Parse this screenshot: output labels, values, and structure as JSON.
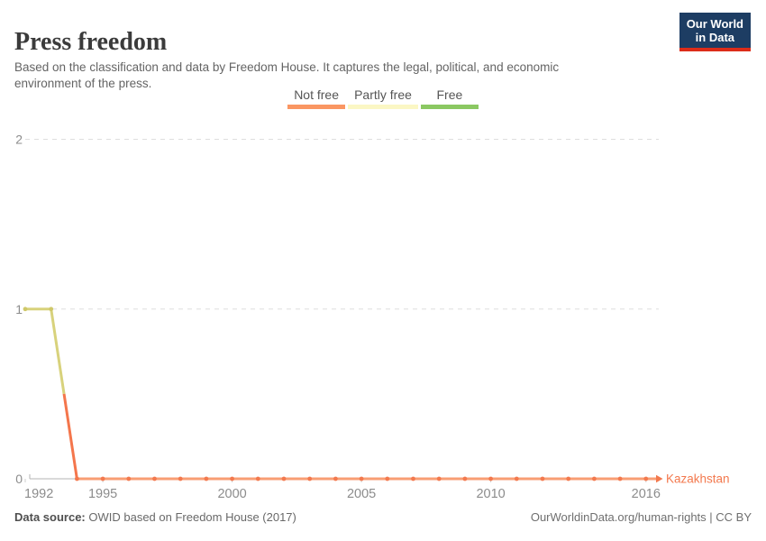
{
  "header": {
    "title": "Press freedom",
    "subtitle_line1": "Based on the classification and data by Freedom House. It captures the legal, political, and economic",
    "subtitle_line2": "environment of the press.",
    "logo": {
      "line1": "Our World",
      "line2": "in Data",
      "bg_color": "#1d3d63",
      "accent_color": "#dc2c19"
    }
  },
  "legend": {
    "items": [
      {
        "label": "Not free",
        "color": "#fa9662"
      },
      {
        "label": "Partly free",
        "color": "#fbf7c4"
      },
      {
        "label": "Free",
        "color": "#8bc862"
      }
    ]
  },
  "chart_data": {
    "type": "line",
    "title": "Press freedom",
    "entity": "Kazakhstan",
    "entity_label_color": "#f3794e",
    "x": [
      1992,
      1993,
      1994,
      1995,
      1996,
      1997,
      1998,
      1999,
      2000,
      2001,
      2002,
      2003,
      2004,
      2005,
      2006,
      2007,
      2008,
      2009,
      2010,
      2011,
      2012,
      2013,
      2014,
      2015,
      2016
    ],
    "values": [
      1,
      1,
      0,
      0,
      0,
      0,
      0,
      0,
      0,
      0,
      0,
      0,
      0,
      0,
      0,
      0,
      0,
      0,
      0,
      0,
      0,
      0,
      0,
      0,
      0
    ],
    "value_categories": {
      "0": "Not free",
      "1": "Partly free",
      "2": "Free"
    },
    "xlabel": "",
    "ylabel": "",
    "ylim": [
      0,
      2
    ],
    "yticks": [
      0,
      1,
      2
    ],
    "xticks": [
      1992,
      1995,
      2000,
      2005,
      2010,
      2016
    ],
    "grid": true,
    "legend_position": "top-center",
    "colors": {
      "partly_free_line": "#d8d27c",
      "partly_free_marker": "#cfc869",
      "not_free_line": "#f89e74",
      "not_free_slope": "#f4764c",
      "not_free_marker": "#f3794e",
      "grid": "#dedede",
      "axis": "#b3b3b3",
      "tick": "#cfcfcf",
      "tick_label": "#8c8c8c"
    }
  },
  "footer": {
    "source_label": "Data source:",
    "source_text": "OWID based on Freedom House (2017)",
    "link_text": "OurWorldinData.org/human-rights | CC BY"
  }
}
